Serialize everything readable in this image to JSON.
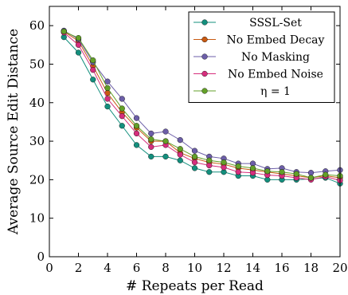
{
  "chart_data": {
    "type": "line",
    "title": "",
    "xlabel": "# Repeats per Read",
    "ylabel": "Average Source Edit Distance",
    "xlim": [
      0,
      20
    ],
    "ylim": [
      0,
      65
    ],
    "xticks": [
      0,
      2,
      4,
      6,
      8,
      10,
      12,
      14,
      16,
      18,
      20
    ],
    "yticks": [
      0,
      10,
      20,
      30,
      40,
      50,
      60
    ],
    "grid": false,
    "legend_position": "top-right",
    "x": [
      1,
      2,
      3,
      4,
      5,
      6,
      7,
      8,
      9,
      10,
      11,
      12,
      13,
      14,
      15,
      16,
      17,
      18,
      19,
      20
    ],
    "series": [
      {
        "name": "SSSL-Set",
        "color": "#138f7d",
        "values": [
          57,
          53,
          46,
          39,
          34,
          29,
          26,
          26,
          25,
          23,
          22,
          22,
          21,
          21,
          20,
          20,
          20,
          20.2,
          20.5,
          19
        ]
      },
      {
        "name": "No Embed Decay",
        "color": "#c85a12",
        "values": [
          58.5,
          56,
          49.5,
          42.5,
          37.5,
          33.5,
          30,
          30,
          27,
          25.5,
          24.5,
          24,
          23,
          22.5,
          22,
          21.5,
          21,
          20.5,
          21,
          20.5
        ]
      },
      {
        "name": "No Masking",
        "color": "#6c5ea8",
        "values": [
          58.7,
          56.5,
          50.5,
          45.5,
          41,
          36,
          32,
          32.5,
          30.3,
          27.5,
          26,
          25.5,
          24.2,
          24.2,
          22.8,
          23,
          22,
          21.8,
          22.2,
          22.5
        ]
      },
      {
        "name": "No Embed Noise",
        "color": "#d62e7d",
        "values": [
          58.2,
          55,
          48.5,
          41,
          36.5,
          32,
          28.5,
          29,
          26.5,
          24.5,
          23.7,
          23.2,
          22,
          21.8,
          21.2,
          21,
          20.5,
          20,
          20.8,
          19.8
        ]
      },
      {
        "name": "η = 1",
        "color": "#63a028",
        "values": [
          58.5,
          56.8,
          51,
          43.8,
          38.5,
          34,
          30.5,
          30,
          28,
          26,
          25,
          24.5,
          23.5,
          23,
          22.2,
          22,
          21.5,
          20.5,
          21.3,
          21
        ]
      }
    ]
  }
}
